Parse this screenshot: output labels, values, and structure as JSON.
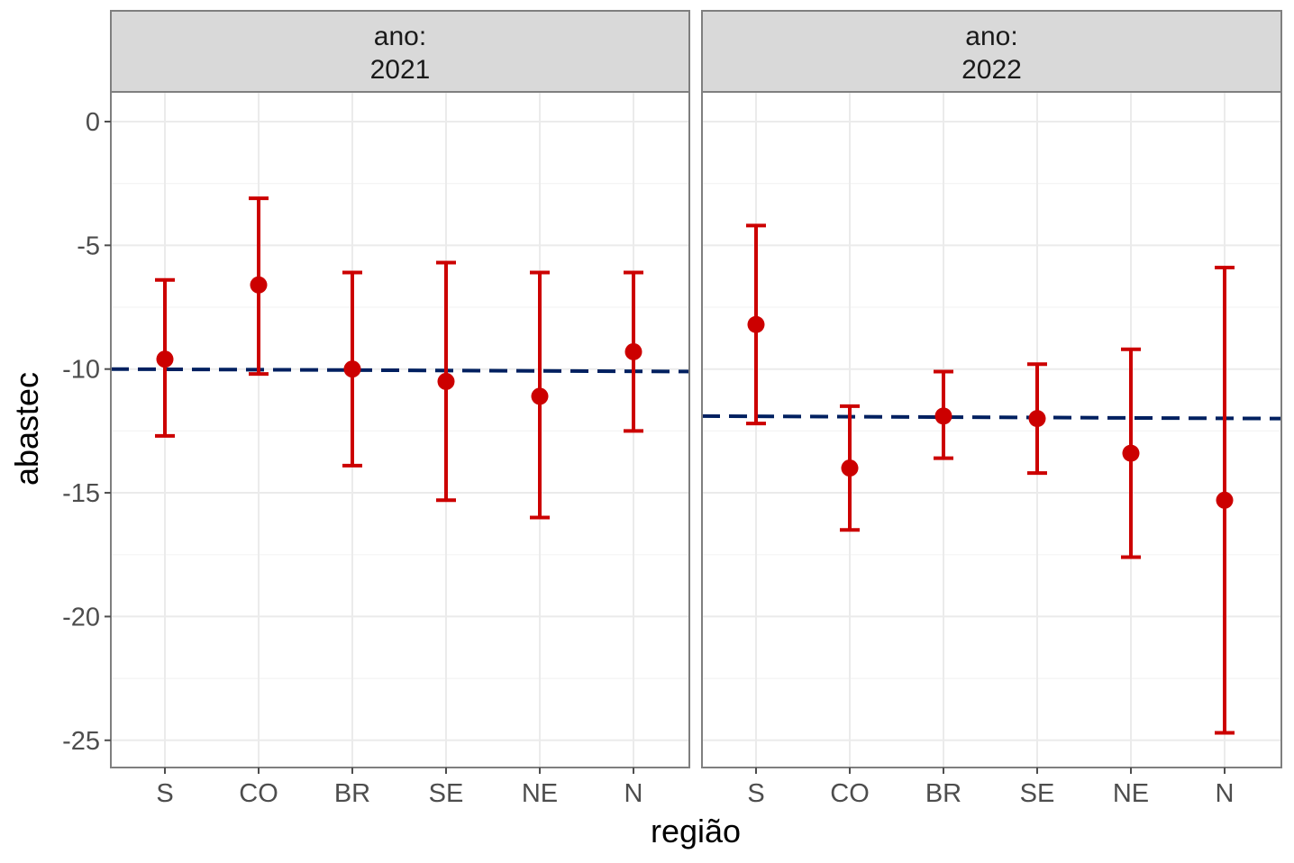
{
  "chart_data": {
    "type": "errorbar",
    "xlabel": "região",
    "ylabel": "abastec",
    "ylim": [
      -26.1,
      1.2
    ],
    "yticks": [
      0,
      -5,
      -10,
      -15,
      -20,
      -25
    ],
    "ytick_labels": [
      "0",
      "-5",
      "-10",
      "-15",
      "-20",
      "-25"
    ],
    "categories": [
      "S",
      "CO",
      "BR",
      "SE",
      "NE",
      "N"
    ],
    "grid": true,
    "colors": {
      "point": "#cc0000",
      "reference_line": "#002060",
      "strip_fill": "#d9d9d9",
      "panel_border": "#7f7f7f"
    },
    "panels": [
      {
        "strip": [
          "ano:",
          "2021"
        ],
        "reference_line": {
          "style": "dashed",
          "y_start": -10.0,
          "y_end": -10.1
        },
        "points": [
          {
            "x": "S",
            "y": -9.6,
            "lower": -12.7,
            "upper": -6.4
          },
          {
            "x": "CO",
            "y": -6.6,
            "lower": -10.2,
            "upper": -3.1
          },
          {
            "x": "BR",
            "y": -10.0,
            "lower": -13.9,
            "upper": -6.1
          },
          {
            "x": "SE",
            "y": -10.5,
            "lower": -15.3,
            "upper": -5.7
          },
          {
            "x": "NE",
            "y": -11.1,
            "lower": -16.0,
            "upper": -6.1
          },
          {
            "x": "N",
            "y": -9.3,
            "lower": -12.5,
            "upper": -6.1
          }
        ]
      },
      {
        "strip": [
          "ano:",
          "2022"
        ],
        "reference_line": {
          "style": "dashed",
          "y_start": -11.9,
          "y_end": -12.0
        },
        "points": [
          {
            "x": "S",
            "y": -8.2,
            "lower": -12.2,
            "upper": -4.2
          },
          {
            "x": "CO",
            "y": -14.0,
            "lower": -16.5,
            "upper": -11.5
          },
          {
            "x": "BR",
            "y": -11.9,
            "lower": -13.6,
            "upper": -10.1
          },
          {
            "x": "SE",
            "y": -12.0,
            "lower": -14.2,
            "upper": -9.8
          },
          {
            "x": "NE",
            "y": -13.4,
            "lower": -17.6,
            "upper": -9.2
          },
          {
            "x": "N",
            "y": -15.3,
            "lower": -24.7,
            "upper": -5.9
          }
        ]
      }
    ]
  }
}
